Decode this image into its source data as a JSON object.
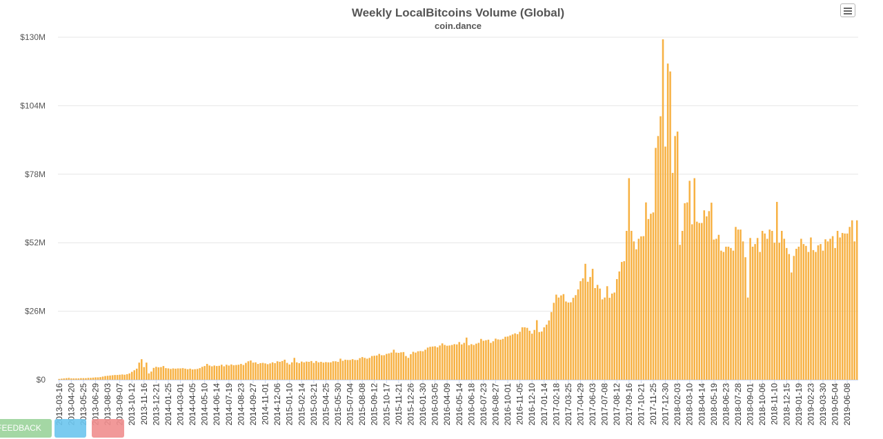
{
  "title": "Weekly LocalBitcoins Volume (Global)",
  "subtitle": "coin.dance",
  "menu_icon": "hamburger-menu-icon",
  "buttons": {
    "feedback_label": "FEEDBACK",
    "blue_label": "",
    "red_label": ""
  },
  "chart_data": {
    "type": "bar",
    "title": "Weekly LocalBitcoins Volume (Global)",
    "subtitle": "coin.dance",
    "xlabel": "",
    "ylabel": "",
    "ylim": [
      0,
      130000000
    ],
    "y_ticks": [
      {
        "value": 0,
        "label": "$0"
      },
      {
        "value": 26000000,
        "label": "$26M"
      },
      {
        "value": 52000000,
        "label": "$52M"
      },
      {
        "value": 78000000,
        "label": "$78M"
      },
      {
        "value": 104000000,
        "label": "$104M"
      },
      {
        "value": 130000000,
        "label": "$130M"
      }
    ],
    "grid": true,
    "legend": "none",
    "bar_color": "#f7b143",
    "x_start": "2013-03-16",
    "x_tick_labels": [
      "2013-03-16",
      "2013-04-20",
      "2013-05-25",
      "2013-06-29",
      "2013-08-03",
      "2013-09-07",
      "2013-10-12",
      "2013-11-16",
      "2013-12-21",
      "2014-01-25",
      "2014-03-01",
      "2014-04-05",
      "2014-05-10",
      "2014-06-14",
      "2014-07-19",
      "2014-08-23",
      "2014-09-27",
      "2014-11-01",
      "2014-12-06",
      "2015-01-10",
      "2015-02-14",
      "2015-03-21",
      "2015-04-25",
      "2015-05-30",
      "2015-07-04",
      "2015-08-08",
      "2015-09-12",
      "2015-10-17",
      "2015-11-21",
      "2015-12-26",
      "2016-01-30",
      "2016-03-05",
      "2016-04-09",
      "2016-05-14",
      "2016-06-18",
      "2016-07-23",
      "2016-08-27",
      "2016-10-01",
      "2016-11-05",
      "2016-12-10",
      "2017-01-14",
      "2017-02-18",
      "2017-03-25",
      "2017-04-29",
      "2017-06-03",
      "2017-07-08",
      "2017-08-12",
      "2017-09-16",
      "2017-10-21",
      "2017-11-25",
      "2017-12-30",
      "2018-02-03",
      "2018-03-10",
      "2018-04-14",
      "2018-05-19",
      "2018-06-23",
      "2018-07-28",
      "2018-09-01",
      "2018-10-06",
      "2018-11-10",
      "2018-12-15",
      "2019-01-19",
      "2019-02-23",
      "2019-03-30",
      "2019-05-04",
      "2019-06-08"
    ],
    "values_musd": [
      0.3,
      0.4,
      0.5,
      0.6,
      0.7,
      0.5,
      0.5,
      0.5,
      0.5,
      0.6,
      0.6,
      0.6,
      0.7,
      0.7,
      0.8,
      0.9,
      0.9,
      1.0,
      1.2,
      1.4,
      1.5,
      1.6,
      1.7,
      1.8,
      1.8,
      1.9,
      2.0,
      1.9,
      2.1,
      2.4,
      3.0,
      3.6,
      4.2,
      6.5,
      7.8,
      4.8,
      6.5,
      2.4,
      3.1,
      4.5,
      4.9,
      4.7,
      4.8,
      5.2,
      4.4,
      4.3,
      4.1,
      4.3,
      4.2,
      4.3,
      4.3,
      4.4,
      4.2,
      4.0,
      4.2,
      3.9,
      4.0,
      4.1,
      4.4,
      4.9,
      5.2,
      6.0,
      5.4,
      5.1,
      5.4,
      5.2,
      5.3,
      5.7,
      5.1,
      5.7,
      5.4,
      5.8,
      5.5,
      5.6,
      5.7,
      6.0,
      5.6,
      6.4,
      7.0,
      7.3,
      6.5,
      6.6,
      6.0,
      6.3,
      6.4,
      6.2,
      5.9,
      6.2,
      6.6,
      6.3,
      7.0,
      6.8,
      7.1,
      7.6,
      6.4,
      5.8,
      6.6,
      8.3,
      6.6,
      6.3,
      6.9,
      6.6,
      6.9,
      6.8,
      7.1,
      6.4,
      7.1,
      6.6,
      6.8,
      6.5,
      6.7,
      6.6,
      6.6,
      7.0,
      7.0,
      6.8,
      8.0,
      7.2,
      7.6,
      7.5,
      7.5,
      7.8,
      7.5,
      7.5,
      8.2,
      8.6,
      8.3,
      8.0,
      8.3,
      9.0,
      9.1,
      9.2,
      9.8,
      9.3,
      9.3,
      9.8,
      10.0,
      10.3,
      11.4,
      10.3,
      10.2,
      10.4,
      10.5,
      9.0,
      8.3,
      9.7,
      10.6,
      10.3,
      10.8,
      10.9,
      10.8,
      11.4,
      12.2,
      12.5,
      12.6,
      12.7,
      12.3,
      13.0,
      13.8,
      13.2,
      12.9,
      13.0,
      13.2,
      13.5,
      13.4,
      14.3,
      13.4,
      14.0,
      16.0,
      13.1,
      13.5,
      13.2,
      13.7,
      14.0,
      15.5,
      14.8,
      15.0,
      15.2,
      14.0,
      14.6,
      15.6,
      15.3,
      15.2,
      15.5,
      16.3,
      16.4,
      16.8,
      17.2,
      17.6,
      17.3,
      18.2,
      19.9,
      19.9,
      19.7,
      18.6,
      17.5,
      18.9,
      22.6,
      18.1,
      18.3,
      19.9,
      20.9,
      22.5,
      25.7,
      29.2,
      32.3,
      31.2,
      32.0,
      32.5,
      29.7,
      29.3,
      29.4,
      31.1,
      32.1,
      34.3,
      37.4,
      38.5,
      44.0,
      37.2,
      39.0,
      42.1,
      34.8,
      36.0,
      34.6,
      30.5,
      31.2,
      35.5,
      31.1,
      32.7,
      33.1,
      38.2,
      41.1,
      44.7,
      45.0,
      56.5,
      76.5,
      56.5,
      52.5,
      49.5,
      53.5,
      54.4,
      54.5,
      67.3,
      61.0,
      63.0,
      63.5,
      88.0,
      92.5,
      100.0,
      129.2,
      88.5,
      120.0,
      117.0,
      78.5,
      92.5,
      94.2,
      51.2,
      56.5,
      67.0,
      67.3,
      75.5,
      59.0,
      76.5,
      60.0,
      59.5,
      59.5,
      64.3,
      62.0,
      64.0,
      67.2,
      53.2,
      53.5,
      55.0,
      49.0,
      48.5,
      50.5,
      50.5,
      50.0,
      49.0,
      58.0,
      57.0,
      57.0,
      52.5,
      46.5,
      31.2,
      53.8,
      50.5,
      51.5,
      53.8,
      48.5,
      56.5,
      55.5,
      53.5,
      57.0,
      56.5,
      52.0,
      67.5,
      52.0,
      56.5,
      53.5,
      50.0,
      47.7,
      40.7,
      47.0,
      49.7,
      50.5,
      53.5,
      51.5,
      50.8,
      48.5,
      54.0,
      49.2,
      48.5,
      51.0,
      51.5,
      49.0,
      53.3,
      52.5,
      53.5,
      54.5,
      50.0,
      56.5,
      54.0,
      55.7,
      55.5,
      55.5,
      58.0,
      60.5,
      52.5,
      60.5
    ]
  }
}
